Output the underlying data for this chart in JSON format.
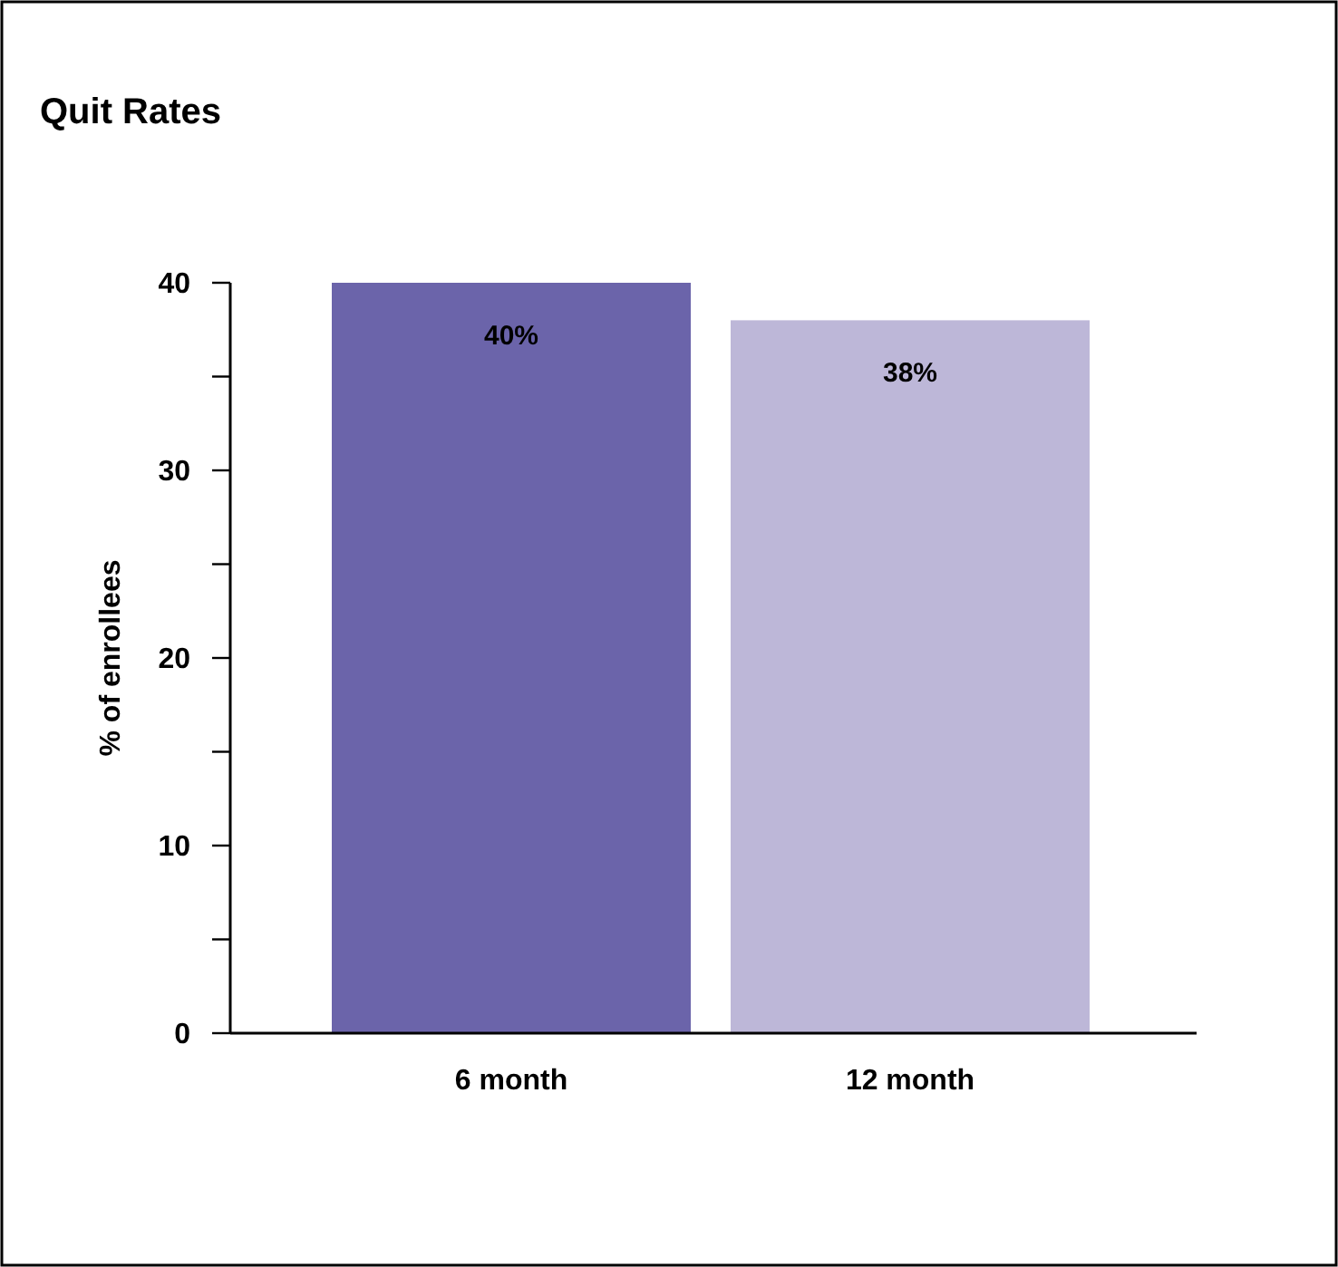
{
  "chart_data": {
    "type": "bar",
    "title": "Quit Rates",
    "ylabel": "% of enrollees",
    "categories": [
      "6 month",
      "12 month"
    ],
    "values": [
      40,
      38
    ],
    "colors": [
      "#6b64aa",
      "#bdb7d8"
    ],
    "value_labels": [
      "40%",
      "38%"
    ],
    "ylim": [
      0,
      40
    ],
    "yticks": [
      0,
      {
        "value": 5,
        "label": null
      },
      10,
      {
        "value": 15,
        "label": null
      },
      20,
      {
        "value": 25,
        "label": null
      },
      30,
      {
        "value": 35,
        "label": null
      },
      40
    ],
    "grid": false
  }
}
